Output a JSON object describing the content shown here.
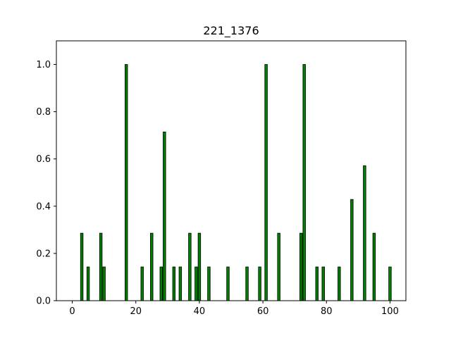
{
  "chart_data": {
    "type": "bar",
    "title": "221_1376",
    "xlabel": "",
    "ylabel": "",
    "xlim": [
      -5,
      105
    ],
    "ylim": [
      0,
      1.1
    ],
    "xticks": [
      0,
      20,
      40,
      60,
      80,
      100
    ],
    "yticks": [
      0.0,
      0.2,
      0.4,
      0.6,
      0.8,
      1.0
    ],
    "xtick_labels": [
      "0",
      "20",
      "40",
      "60",
      "80",
      "100"
    ],
    "ytick_labels": [
      "0.0",
      "0.2",
      "0.4",
      "0.6",
      "0.8",
      "1.0"
    ],
    "bar_color": "#008000",
    "edge_color": "#000000",
    "grid": false,
    "x": [
      3,
      5,
      9,
      10,
      17,
      22,
      25,
      28,
      29,
      32,
      34,
      37,
      39,
      40,
      43,
      49,
      55,
      59,
      61,
      65,
      72,
      73,
      77,
      79,
      84,
      88,
      92,
      95,
      100
    ],
    "values": [
      0.2857,
      0.1429,
      0.2857,
      0.1429,
      1.0,
      0.1429,
      0.2857,
      0.1429,
      0.7143,
      0.1429,
      0.1429,
      0.2857,
      0.1429,
      0.2857,
      0.1429,
      0.1429,
      0.1429,
      0.1429,
      1.0,
      0.2857,
      0.2857,
      1.0,
      0.1429,
      0.1429,
      0.1429,
      0.4286,
      0.5714,
      0.2857,
      0.1429
    ]
  }
}
